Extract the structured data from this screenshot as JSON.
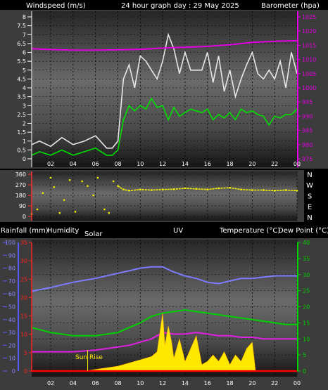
{
  "header": {
    "windspeed_label": "Windspeed (m/s)",
    "title": "24 hour graph day : 29 May 2025",
    "barometer_label": "Barometer (hpa)"
  },
  "x_ticks": [
    "02",
    "04",
    "06",
    "08",
    "10",
    "12",
    "14",
    "16",
    "18",
    "20",
    "22",
    "00"
  ],
  "panel1": {
    "wind_ticks": [
      "0",
      "0.5",
      "1",
      "1.5",
      "2",
      "2.5",
      "3",
      "3.5",
      "4",
      "4.5",
      "5",
      "5.5",
      "6",
      "6.5",
      "7",
      "7.5",
      "8"
    ],
    "baro_ticks": [
      "975",
      "980",
      "985",
      "990",
      "995",
      "1000",
      "1005",
      "1010",
      "1015",
      "1020",
      "1025"
    ]
  },
  "panel2": {
    "dir_ticks": [
      "0",
      "90",
      "180",
      "270",
      "360"
    ],
    "compass": [
      "N",
      "W",
      "S",
      "E",
      "N"
    ]
  },
  "panel3": {
    "header": {
      "rainfall": "Rainfall (mm)",
      "humidity": "Humidity",
      "solar": "Solar",
      "uv": "UV",
      "temperature": "Temperature (°C)",
      "dewpoint": "Dew Point (°C)"
    },
    "humidity_ticks": [
      "0",
      "10",
      "20",
      "30",
      "40",
      "50",
      "60",
      "70",
      "80",
      "90",
      "100"
    ],
    "rain_ticks": [
      "0",
      "5",
      "10",
      "15",
      "20",
      "25",
      "30",
      "35"
    ],
    "temp_ticks": [
      "0",
      "5",
      "10",
      "15",
      "20",
      "25",
      "30",
      "35",
      "40"
    ],
    "sunrise_label": "Sun Rise"
  },
  "colors": {
    "gust": "#e6e6e6",
    "wind_avg": "#00e000",
    "barometer": "#e000e0",
    "direction": "#f0f000",
    "humidity": "#7c7cff",
    "temperature": "#00d000",
    "dewpoint": "#e020e0",
    "solar": "#ffe800",
    "rain": "#ff0000",
    "uv": "#ffa000"
  },
  "chart_data": [
    {
      "type": "line",
      "x_unit": "hour",
      "xlim": [
        0.3,
        24
      ],
      "title": "24 hour graph day : 29 May 2025",
      "ylabel": "Windspeed (m/s)",
      "ylabel_right": "Barometer (hpa)",
      "ylim": [
        0,
        8
      ],
      "ylim_right": [
        975,
        1025
      ],
      "series": [
        {
          "name": "gust",
          "x": [
            0.3,
            1,
            2,
            3,
            4,
            5,
            6,
            7,
            7.5,
            8,
            8.5,
            9,
            9.5,
            10,
            10.5,
            11,
            11.5,
            12,
            12.5,
            13,
            13.5,
            14,
            14.5,
            15,
            15.5,
            16,
            16.5,
            17,
            17.5,
            18,
            18.5,
            19,
            19.5,
            20,
            20.5,
            21,
            21.5,
            22,
            22.5,
            23,
            23.5,
            24
          ],
          "y": [
            0.8,
            1,
            0.7,
            1.2,
            0.8,
            1,
            1.3,
            0.6,
            0.6,
            1,
            4.5,
            5.3,
            4,
            5.8,
            5.5,
            5,
            4.5,
            5.5,
            7,
            6.2,
            4.8,
            6,
            5,
            5,
            5,
            6,
            4.3,
            5.8,
            3.8,
            5,
            3.5,
            4.5,
            5.3,
            6,
            4.8,
            4.5,
            5,
            4.5,
            5.5,
            4,
            6,
            4.8
          ]
        },
        {
          "name": "wind",
          "x": [
            0.3,
            1,
            2,
            3,
            4,
            5,
            6,
            7,
            7.5,
            8,
            8.5,
            9,
            9.5,
            10,
            10.5,
            11,
            11.5,
            12,
            12.5,
            13,
            13.5,
            14,
            14.5,
            15,
            15.5,
            16,
            16.5,
            17,
            17.5,
            18,
            18.5,
            19,
            19.5,
            20,
            20.5,
            21,
            21.5,
            22,
            22.5,
            23,
            23.5,
            24
          ],
          "y": [
            0.2,
            0.4,
            0.2,
            0.5,
            0.2,
            0.4,
            0.6,
            0.2,
            0.2,
            0.5,
            2.2,
            3,
            2.7,
            3,
            2.8,
            3.4,
            2.9,
            3,
            2.2,
            2.9,
            2.4,
            2.6,
            2.8,
            2.7,
            2.6,
            2.8,
            2.2,
            2.5,
            2.3,
            2.6,
            2.2,
            2.8,
            2.6,
            2.7,
            2.5,
            2.4,
            1.9,
            2.4,
            2.3,
            2.5,
            2.5,
            2.8
          ]
        },
        {
          "name": "barometer",
          "axis": "right",
          "x": [
            0.3,
            2,
            4,
            6,
            8,
            10,
            12,
            14,
            16,
            18,
            20,
            22,
            24
          ],
          "y": [
            1013.8,
            1013.5,
            1013.3,
            1013.3,
            1013.4,
            1013.6,
            1014.0,
            1014.3,
            1014.6,
            1015.2,
            1016.0,
            1016.4,
            1016.6
          ]
        }
      ]
    },
    {
      "type": "scatter",
      "x_unit": "hour",
      "xlim": [
        0.3,
        24
      ],
      "ylim": [
        0,
        360
      ],
      "yticks": [
        0,
        90,
        180,
        270,
        360
      ],
      "series": [
        {
          "name": "direction",
          "x": [
            0.3,
            0.8,
            1.3,
            2,
            2.3,
            2.8,
            3.2,
            3.7,
            4.2,
            4.8,
            5.3,
            5.8,
            6.2,
            6.8,
            7.2,
            7.6,
            8,
            8.5,
            9,
            10,
            11,
            12,
            13,
            14,
            15,
            16,
            17,
            18,
            19,
            20,
            21,
            22,
            23,
            24
          ],
          "y": [
            20,
            60,
            200,
            330,
            250,
            30,
            140,
            310,
            40,
            300,
            260,
            180,
            330,
            60,
            30,
            300,
            260,
            230,
            220,
            230,
            225,
            230,
            232,
            240,
            235,
            230,
            240,
            245,
            230,
            225,
            225,
            220,
            225,
            220
          ]
        }
      ]
    },
    {
      "type": "line",
      "x_unit": "hour",
      "xlim": [
        0.3,
        24
      ],
      "ylabel": "Humidity",
      "ylim": [
        0,
        100
      ],
      "ylabel_right": "Temperature (°C)",
      "ylim_right": [
        0,
        40
      ],
      "series": [
        {
          "name": "humidity",
          "x": [
            0.3,
            2,
            4,
            6,
            8,
            9,
            10,
            11,
            12,
            13,
            14,
            15,
            16,
            17,
            18,
            19,
            20,
            21,
            22,
            23,
            24
          ],
          "y": [
            62,
            65,
            69,
            72,
            76,
            78,
            80,
            81,
            81,
            77,
            74,
            72,
            69,
            68,
            70,
            72,
            72,
            73,
            74,
            74,
            74
          ]
        },
        {
          "name": "temperature",
          "axis": "right",
          "x": [
            0.3,
            2,
            4,
            6,
            8,
            9,
            10,
            11,
            12,
            13,
            14,
            15,
            16,
            17,
            18,
            19,
            20,
            21,
            22,
            23,
            24
          ],
          "y": [
            13.5,
            12,
            11,
            11,
            12,
            13.5,
            15,
            17,
            18,
            18.5,
            19,
            18.5,
            18,
            17.5,
            17,
            16.5,
            16,
            15.5,
            15,
            14.5,
            14.5
          ]
        },
        {
          "name": "dewpoint",
          "axis": "right",
          "x": [
            0.3,
            2,
            4,
            6,
            8,
            9,
            10,
            11,
            12,
            13,
            14,
            15,
            16,
            17,
            18,
            19,
            20,
            21,
            22,
            23,
            24
          ],
          "y": [
            6,
            6,
            6,
            6.5,
            7.5,
            8,
            9,
            10,
            12,
            11.5,
            11.5,
            12,
            11.5,
            11,
            11,
            10.5,
            10.5,
            10,
            10,
            10,
            10
          ]
        },
        {
          "name": "solar",
          "axis": "right",
          "x": [
            0.3,
            5,
            6,
            7,
            8,
            9,
            10,
            11,
            11.5,
            12,
            12.2,
            12.5,
            12.8,
            13,
            13.5,
            14,
            14.5,
            15,
            15.5,
            16,
            16.5,
            17,
            17.5,
            18,
            18.5,
            19,
            19.5,
            20,
            20.3,
            24
          ],
          "y": [
            0,
            0,
            0.5,
            1,
            1.5,
            2.5,
            3.5,
            4.5,
            6,
            18,
            8,
            14,
            9,
            4,
            10,
            3,
            7,
            11,
            2,
            3,
            5,
            3,
            6,
            2,
            5,
            3,
            7,
            9,
            0,
            0
          ]
        },
        {
          "name": "rain",
          "x": [
            0.3,
            24
          ],
          "y": [
            0,
            0
          ]
        }
      ]
    }
  ]
}
